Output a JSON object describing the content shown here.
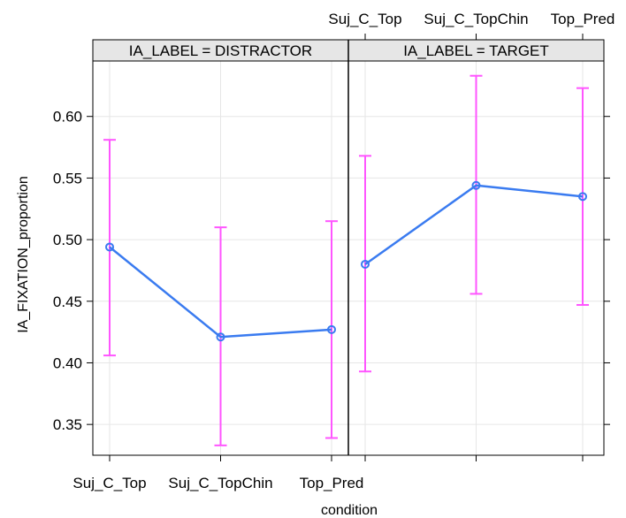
{
  "chart_data": {
    "type": "line",
    "xlabel": "condition",
    "ylabel": "IA_FIXATION_proportion",
    "categories": [
      "Suj_C_Top",
      "Suj_C_TopChin",
      "Top_Pred"
    ],
    "ylim": [
      0.325,
      0.645
    ],
    "yticks": [
      0.35,
      0.4,
      0.45,
      0.5,
      0.55,
      0.6
    ],
    "ytick_labels": [
      "0.35",
      "0.40",
      "0.45",
      "0.50",
      "0.55",
      "0.60"
    ],
    "grid": true,
    "line_color": "#3a7bf0",
    "errorbar_color": "#ff55ff",
    "panels": [
      {
        "strip": "IA_LABEL = DISTRACTOR",
        "values": [
          0.494,
          0.421,
          0.427
        ],
        "lower": [
          0.406,
          0.333,
          0.339
        ],
        "upper": [
          0.581,
          0.51,
          0.515
        ]
      },
      {
        "strip": "IA_LABEL = TARGET",
        "values": [
          0.48,
          0.544,
          0.535
        ],
        "lower": [
          0.393,
          0.456,
          0.447
        ],
        "upper": [
          0.568,
          0.633,
          0.623
        ]
      }
    ]
  }
}
